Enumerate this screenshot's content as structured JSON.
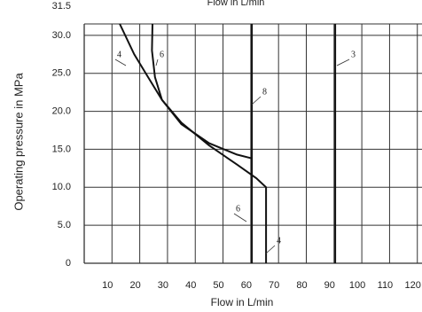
{
  "chart_data": {
    "type": "line",
    "title": "Flow in L/min",
    "x_label": "Flow in L/min",
    "y_label": "Operating pressure in MPa",
    "xlim": [
      0,
      122
    ],
    "xticks": [
      10,
      20,
      30,
      40,
      50,
      60,
      70,
      80,
      90,
      100,
      110,
      120
    ],
    "ylim": [
      0,
      31.5
    ],
    "yticks": [
      {
        "value": 0,
        "label": "0"
      },
      {
        "value": 5,
        "label": "5.0"
      },
      {
        "value": 10,
        "label": "10.0"
      },
      {
        "value": 15,
        "label": "15.0"
      },
      {
        "value": 20,
        "label": "20.0"
      },
      {
        "value": 25,
        "label": "25.0"
      },
      {
        "value": 30,
        "label": "30.0"
      },
      {
        "value": 31.5,
        "label": "31.5"
      }
    ],
    "grid": true,
    "series": [
      {
        "color": "#111111",
        "x": [
          12.8,
          18,
          23,
          28,
          35,
          45,
          55,
          62,
          65.5,
          65.5
        ],
        "values": [
          31.5,
          27.5,
          24.5,
          21.5,
          18.5,
          15.5,
          13,
          11.2,
          10,
          0
        ]
      },
      {
        "color": "#111111",
        "x": [
          24.6,
          24.4,
          25.5,
          28,
          35,
          45,
          55,
          60.4
        ],
        "values": [
          31.5,
          28,
          24.5,
          21.5,
          18.3,
          15.8,
          14.3,
          13.8
        ]
      },
      {
        "color": "#111111",
        "x": [
          60.4,
          60.4
        ],
        "values": [
          31.5,
          0
        ]
      },
      {
        "color": "#111111",
        "x": [
          90.4,
          90.4
        ],
        "values": [
          31.5,
          0
        ]
      }
    ],
    "annotations": [
      "4",
      "6",
      "8",
      "6",
      "4",
      "3"
    ]
  }
}
